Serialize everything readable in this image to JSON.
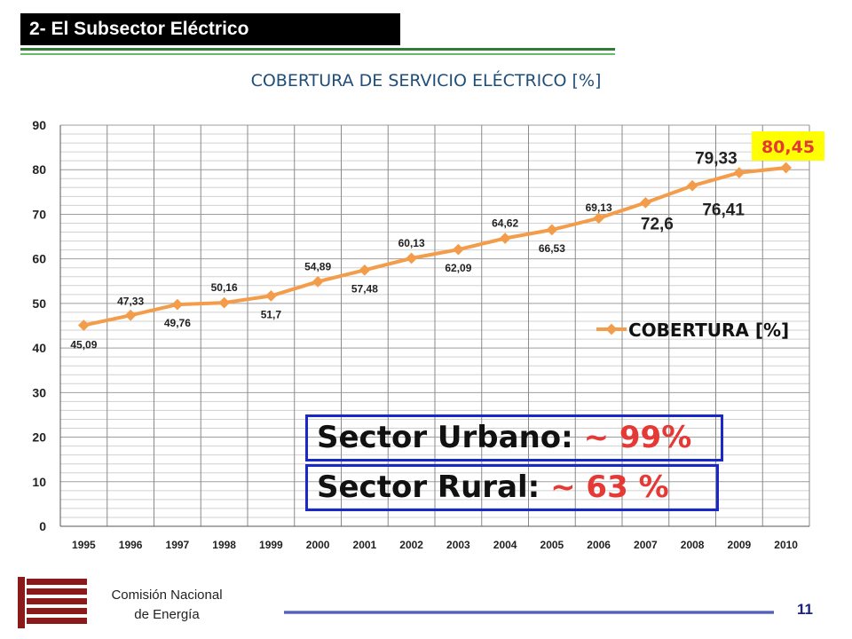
{
  "header": {
    "title": "2- El Subsector Eléctrico"
  },
  "chart_data": {
    "type": "line",
    "title": "COBERTURA DE SERVICIO ELÉCTRICO [%]",
    "xlabel": "",
    "ylabel": "",
    "ylim": [
      0,
      90
    ],
    "yticks": [
      "0",
      "10",
      "20",
      "30",
      "40",
      "50",
      "60",
      "70",
      "80",
      "90"
    ],
    "grid": true,
    "legend": "right",
    "categories": [
      "1995",
      "1996",
      "1997",
      "1998",
      "1999",
      "2000",
      "2001",
      "2002",
      "2003",
      "2004",
      "2005",
      "2006",
      "2007",
      "2008",
      "2009",
      "2010"
    ],
    "series": [
      {
        "name": "COBERTURA [%]",
        "color": "#f39c4a",
        "values": [
          45.09,
          47.33,
          49.76,
          50.16,
          51.7,
          54.89,
          57.48,
          60.13,
          62.09,
          64.62,
          66.53,
          69.13,
          72.6,
          76.41,
          79.33,
          80.45
        ],
        "labels": [
          "45,09",
          "47,33",
          "49,76",
          "50,16",
          "51,7",
          "54,89",
          "57,48",
          "60,13",
          "62,09",
          "64,62",
          "66,53",
          "69,13",
          "72,6",
          "76,41",
          "79,33",
          "80,45"
        ]
      }
    ]
  },
  "callouts": {
    "urbano_label": "Sector Urbano:",
    "urbano_value": "~ 99%",
    "rural_label": "Sector Rural:",
    "rural_value": "~ 63 %"
  },
  "footer": {
    "org_line1": "Comisión Nacional",
    "org_line2": "de Energía",
    "page_number": "11",
    "logo_icon": "cne-logo-icon"
  },
  "colors": {
    "accent_red": "#e53935",
    "box_border": "#1a28c8",
    "highlight": "#ffff00"
  }
}
